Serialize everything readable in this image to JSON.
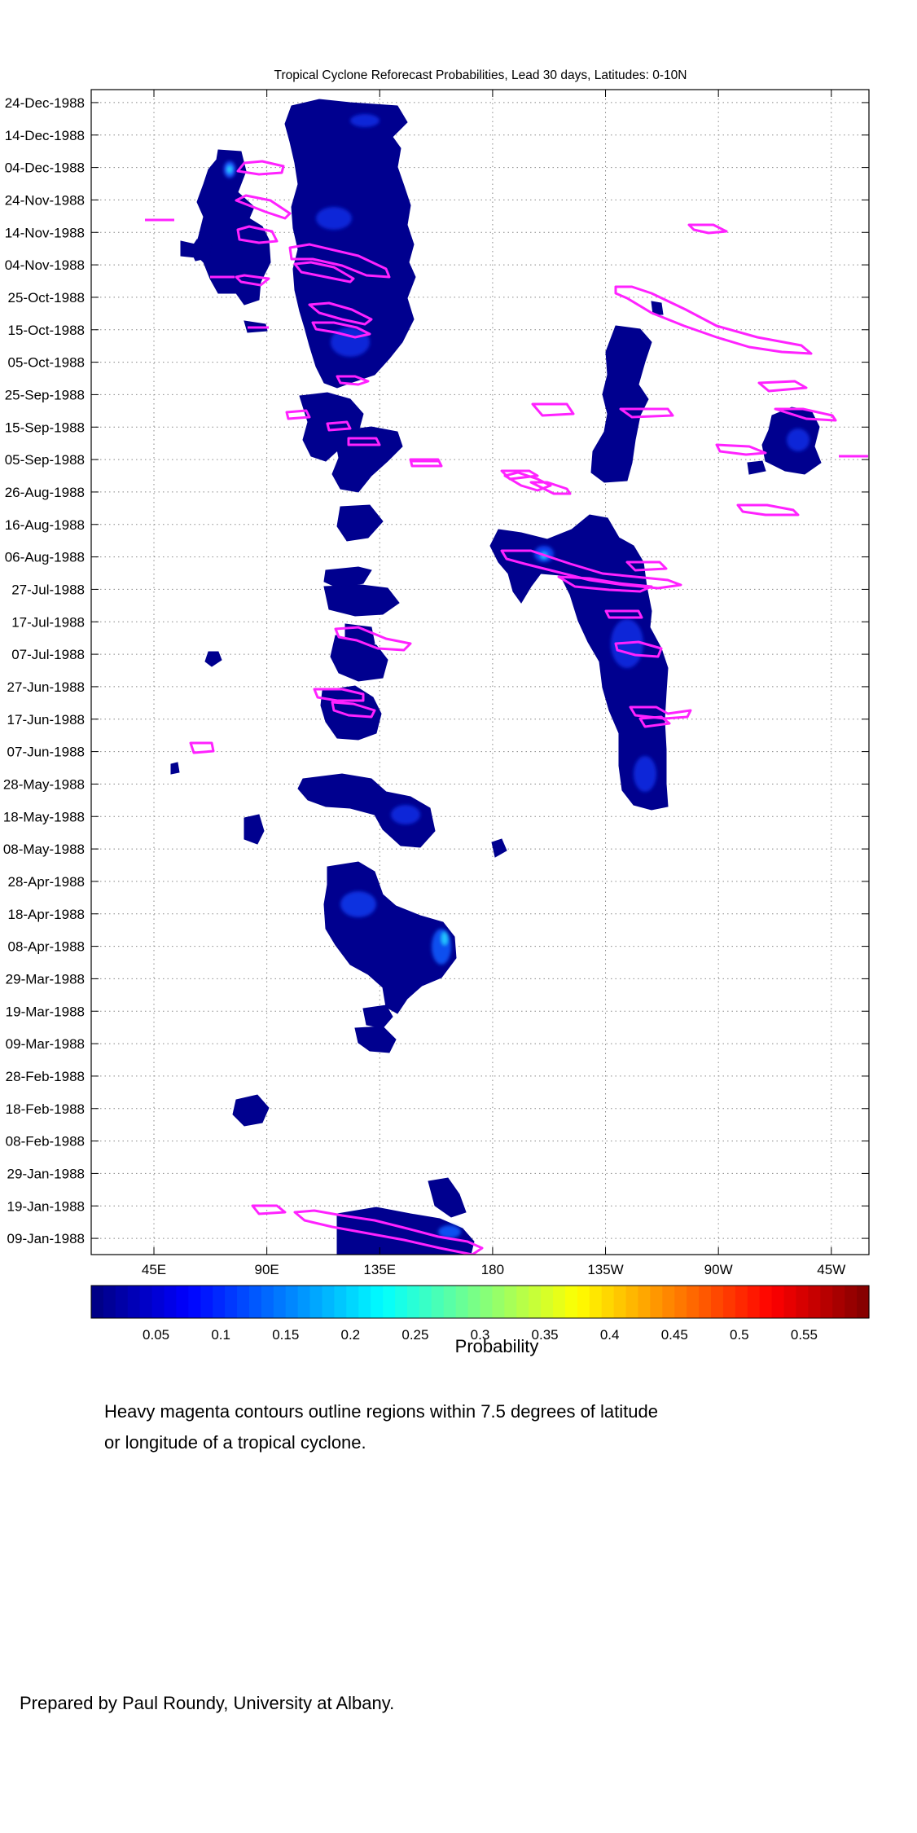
{
  "chart_data": {
    "type": "heatmap",
    "title": "Tropical Cyclone Reforecast Probabilities, Lead 30 days, Latitudes: 0-10N",
    "x_tick_labels": [
      "45E",
      "90E",
      "135E",
      "180",
      "135W",
      "90W",
      "45W"
    ],
    "x_tick_longitudes": [
      45,
      90,
      135,
      180,
      225,
      270,
      315
    ],
    "xlim": [
      20,
      330
    ],
    "y_tick_labels": [
      "24-Dec-1988",
      "14-Dec-1988",
      "04-Dec-1988",
      "24-Nov-1988",
      "14-Nov-1988",
      "04-Nov-1988",
      "25-Oct-1988",
      "15-Oct-1988",
      "05-Oct-1988",
      "25-Sep-1988",
      "15-Sep-1988",
      "05-Sep-1988",
      "26-Aug-1988",
      "16-Aug-1988",
      "06-Aug-1988",
      "27-Jul-1988",
      "17-Jul-1988",
      "07-Jul-1988",
      "27-Jun-1988",
      "17-Jun-1988",
      "07-Jun-1988",
      "28-May-1988",
      "18-May-1988",
      "08-May-1988",
      "28-Apr-1988",
      "18-Apr-1988",
      "08-Apr-1988",
      "29-Mar-1988",
      "19-Mar-1988",
      "09-Mar-1988",
      "28-Feb-1988",
      "18-Feb-1988",
      "08-Feb-1988",
      "29-Jan-1988",
      "19-Jan-1988",
      "09-Jan-1988"
    ],
    "ylim": [
      "04-Jan-1988",
      "28-Dec-1988"
    ],
    "grid": true,
    "colorbar": {
      "label": "Probability",
      "range": [
        0,
        0.6
      ],
      "tick_labels": [
        "0.05",
        "0.1",
        "0.15",
        "0.2",
        "0.25",
        "0.3",
        "0.35",
        "0.4",
        "0.45",
        "0.5",
        "0.55"
      ],
      "tick_values": [
        0.05,
        0.1,
        0.15,
        0.2,
        0.25,
        0.3,
        0.35,
        0.4,
        0.45,
        0.5,
        0.55
      ],
      "colormap": "jet"
    },
    "probability_regions": [
      {
        "lon": 146,
        "date": "1988-12-22",
        "value": 0.08
      },
      {
        "lon": 143,
        "date": "1988-11-20",
        "value": 0.1
      },
      {
        "lon": 142,
        "date": "1988-10-20",
        "value": 0.09
      },
      {
        "lon": 142,
        "date": "1988-09-20",
        "value": 0.07
      },
      {
        "lon": 135,
        "date": "1988-08-22",
        "value": 0.07
      },
      {
        "lon": 138,
        "date": "1988-07-20",
        "value": 0.07
      },
      {
        "lon": 138,
        "date": "1988-06-18",
        "value": 0.07
      },
      {
        "lon": 150,
        "date": "1988-05-22",
        "value": 0.08
      },
      {
        "lon": 157,
        "date": "1988-04-14",
        "value": 0.11
      },
      {
        "lon": 168,
        "date": "1988-01-08",
        "value": 0.1
      },
      {
        "lon": 73,
        "date": "1988-11-16",
        "value": 0.08
      },
      {
        "lon": 249,
        "date": "1988-07-05",
        "value": 0.1
      },
      {
        "lon": 237,
        "date": "1988-08-08",
        "value": 0.1
      },
      {
        "lon": 245,
        "date": "1988-09-25",
        "value": 0.07
      },
      {
        "lon": 317,
        "date": "1988-09-10",
        "value": 0.06
      }
    ],
    "annotation": "Heavy magenta contours outline regions within 7.5 degrees of latitude or longitude of a tropical cyclone."
  },
  "colors": {
    "cyclone_contour": "#ff22ff",
    "low_probability": "#00008f",
    "background": "#ffffff",
    "grid": "#888888"
  },
  "note_line_1": "Heavy magenta contours outline regions within 7.5 degrees of latitude",
  "note_line_2": "or longitude of a tropical cyclone.",
  "credit": "Prepared by Paul Roundy, University at Albany."
}
